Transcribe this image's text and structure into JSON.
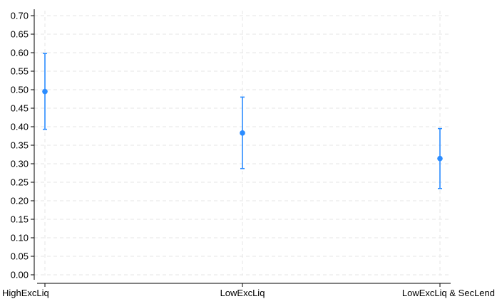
{
  "chart_data": {
    "type": "scatter",
    "title": "",
    "xlabel": "",
    "ylabel": "",
    "categories": [
      "HighExcLiq",
      "LowExcLiq",
      "LowExcLiq & SecLend"
    ],
    "points": [
      {
        "category": "HighExcLiq",
        "estimate": 0.495,
        "lower": 0.393,
        "upper": 0.598
      },
      {
        "category": "LowExcLiq",
        "estimate": 0.383,
        "lower": 0.287,
        "upper": 0.48
      },
      {
        "category": "LowExcLiq & SecLend",
        "estimate": 0.314,
        "lower": 0.233,
        "upper": 0.395
      }
    ],
    "ylim": [
      0,
      0.7
    ],
    "yticks": [
      "0.00",
      "0.05",
      "0.10",
      "0.15",
      "0.20",
      "0.25",
      "0.30",
      "0.35",
      "0.40",
      "0.45",
      "0.50",
      "0.55",
      "0.60",
      "0.65",
      "0.70"
    ],
    "grid": true,
    "legend": "none",
    "colors": {
      "marker": "#2b8cff",
      "grid": "#e6e6e6",
      "axis": "#000000"
    }
  }
}
